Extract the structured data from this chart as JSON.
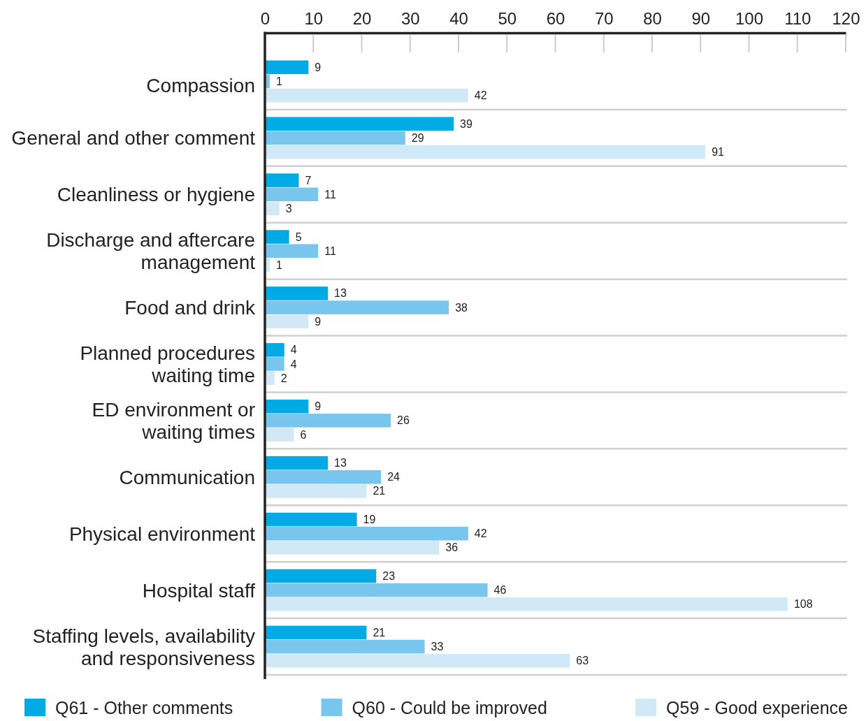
{
  "chart_data": {
    "type": "bar",
    "orientation": "horizontal",
    "categories": [
      "Compassion",
      "General and other comment",
      "Cleanliness or hygiene",
      "Discharge and aftercare management",
      "Food and drink",
      "Planned procedures waiting time",
      "ED environment or waiting times",
      "Communication",
      "Physical environment",
      "Hospital staff",
      "Staffing levels, availability and responsiveness"
    ],
    "series": [
      {
        "name": "Q61 - Other comments",
        "color": "#00aae4",
        "values": [
          9,
          39,
          7,
          5,
          13,
          4,
          9,
          13,
          19,
          23,
          21
        ]
      },
      {
        "name": "Q60 - Could be improved",
        "color": "#78c6ee",
        "values": [
          1,
          29,
          11,
          11,
          38,
          4,
          26,
          24,
          42,
          46,
          33
        ]
      },
      {
        "name": "Q59 - Good experience",
        "color": "#d1e9f6",
        "values": [
          42,
          91,
          3,
          1,
          9,
          2,
          6,
          21,
          36,
          108,
          63
        ]
      }
    ],
    "xlim": [
      0,
      120
    ],
    "xticks": [
      0,
      10,
      20,
      30,
      40,
      50,
      60,
      70,
      80,
      90,
      100,
      110,
      120
    ],
    "grid": "y",
    "legend": "bottom",
    "data_labels": true
  }
}
